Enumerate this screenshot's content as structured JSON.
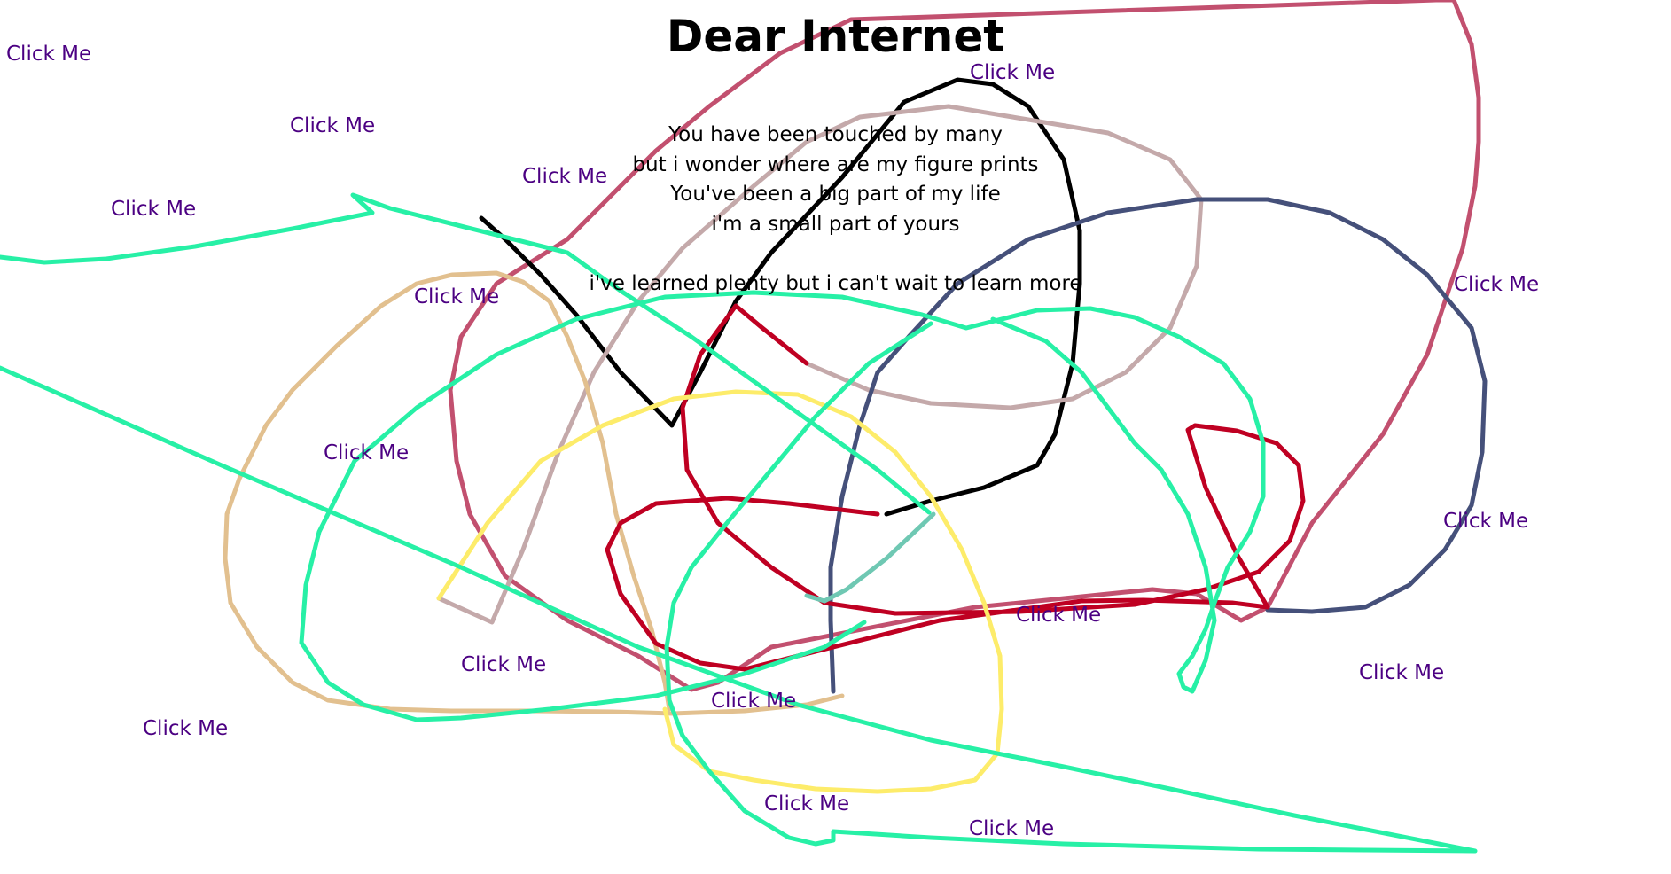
{
  "title": "Dear Internet",
  "poem": {
    "lines": [
      "You have been touched by many",
      "but i wonder where are my figure prints",
      "You've been a big part of my life",
      "i'm a small part of yours",
      "",
      "i've learned plenty but i can't wait to learn more"
    ]
  },
  "link_label": "Click Me",
  "colors": {
    "background": "#ffffff",
    "text": "#000000",
    "link": "#4b0082",
    "scribble_magenta": "#c2506f",
    "scribble_black": "#000000",
    "scribble_mauve": "#c4a9aa",
    "scribble_navy": "#45507a",
    "scribble_tan": "#e2c08f",
    "scribble_red": "#bf0022",
    "scribble_yellow": "#fdec6a",
    "scribble_teal": "#6fc8b3",
    "scribble_aqua": "#27f0a6"
  }
}
